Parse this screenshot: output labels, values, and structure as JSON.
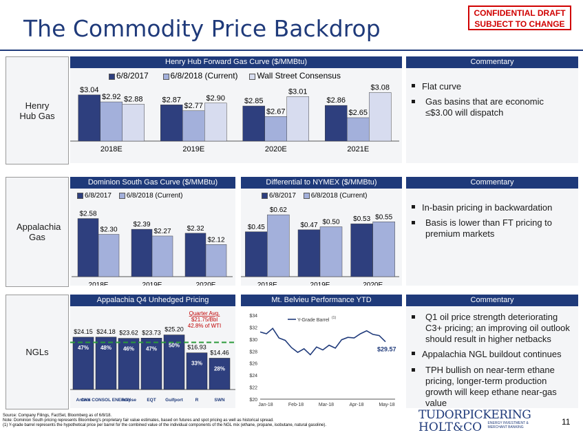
{
  "title": "The Commodity Price Backdrop",
  "confidential": {
    "line1": "CONFIDENTIAL DRAFT",
    "line2": "SUBJECT TO CHANGE"
  },
  "colors": {
    "dark": "#2e3f7e",
    "mid": "#a3b0db",
    "light": "#d7dcef",
    "header": "#1f3a7a",
    "red": "#c00000",
    "green": "#2a9a3a"
  },
  "rows": {
    "henry": "Henry Hub Gas",
    "appalachia": "Appalachia Gas",
    "ngls": "NGLs"
  },
  "henry_chart": {
    "title": "Henry Hub Forward Gas Curve ($/MMBtu)",
    "legend": [
      "6/8/2017",
      "6/8/2018 (Current)",
      "Wall Street Consensus"
    ],
    "chart_data": {
      "type": "bar",
      "categories": [
        "2018E",
        "2019E",
        "2020E",
        "2021E"
      ],
      "series": [
        {
          "name": "6/8/2017",
          "values": [
            3.04,
            2.87,
            2.85,
            2.86
          ],
          "labels": [
            "$3.04",
            "$2.87",
            "$2.85",
            "$2.86"
          ]
        },
        {
          "name": "6/8/2018 (Current)",
          "values": [
            2.92,
            2.77,
            2.67,
            2.65
          ],
          "labels": [
            "$2.92",
            "$2.77",
            "$2.67",
            "$2.65"
          ]
        },
        {
          "name": "Wall Street Consensus",
          "values": [
            2.88,
            2.9,
            3.01,
            3.08
          ],
          "labels": [
            "$2.88",
            "$2.90",
            "$3.01",
            "$3.08"
          ]
        }
      ]
    }
  },
  "dominion_chart": {
    "title": "Dominion South Gas Curve ($/MMBtu)",
    "legend": [
      "6/8/2017",
      "6/8/2018 (Current)"
    ],
    "chart_data": {
      "type": "bar",
      "categories": [
        "2018E",
        "2019E",
        "2020E"
      ],
      "series": [
        {
          "name": "6/8/2017",
          "values": [
            2.58,
            2.39,
            2.32
          ],
          "labels": [
            "$2.58",
            "$2.39",
            "$2.32"
          ]
        },
        {
          "name": "6/8/2018 (Current)",
          "values": [
            2.3,
            2.27,
            2.12
          ],
          "labels": [
            "$2.30",
            "$2.27",
            "$2.12"
          ]
        }
      ]
    }
  },
  "diff_chart": {
    "title": "Differential to NYMEX ($/MMBtu)",
    "legend": [
      "6/8/2017",
      "6/8/2018 (Current)"
    ],
    "chart_data": {
      "type": "bar",
      "categories": [
        "2018E",
        "2019E",
        "2020E"
      ],
      "series": [
        {
          "name": "6/8/2017",
          "values": [
            0.45,
            0.47,
            0.53
          ],
          "labels": [
            "$0.45",
            "$0.47",
            "$0.53"
          ]
        },
        {
          "name": "6/8/2018 (Current)",
          "values": [
            0.62,
            0.5,
            0.55
          ],
          "labels": [
            "$0.62",
            "$0.50",
            "$0.55"
          ]
        }
      ]
    }
  },
  "unhedged_chart": {
    "title": "Appalachia Q4 Unhedged Pricing",
    "annotation": {
      "l1": "Quarter Avg.",
      "l2": "$21.75/Bbl",
      "l3": "42.8% of WTI"
    },
    "chart_data": {
      "type": "bar",
      "avg": 21.75,
      "values": [
        24.15,
        24.18,
        23.62,
        23.73,
        25.2,
        16.93,
        14.46
      ],
      "labels": [
        "$24.15",
        "$24.18",
        "$23.62",
        "$23.73",
        "$25.20",
        "$16.93",
        "$14.46"
      ],
      "pcts": [
        "47%",
        "48%",
        "46%",
        "47%",
        "50%",
        "33%",
        "28%"
      ]
    },
    "logos": [
      "Antero",
      "CNX CONSOL ENERGY",
      "eclipse",
      "EQT",
      "Gulfport",
      "R",
      "SWN"
    ]
  },
  "belvieu_chart": {
    "title": "Mt. Belvieu Performance YTD",
    "legend": "Y-Grade Barrel",
    "legend_sup": "(1)",
    "end_label": "$29.57",
    "chart_data": {
      "type": "line",
      "ylim": [
        20,
        34
      ],
      "yticks": [
        "$34",
        "$32",
        "$30",
        "$28",
        "$26",
        "$24",
        "$22",
        "$20"
      ],
      "xticks": [
        "Jan-18",
        "Feb-18",
        "Mar-18",
        "Apr-18",
        "May-18"
      ],
      "x": [
        0,
        0.05,
        0.1,
        0.15,
        0.2,
        0.25,
        0.3,
        0.35,
        0.4,
        0.45,
        0.5,
        0.55,
        0.6,
        0.65,
        0.7,
        0.75,
        0.8,
        0.85,
        0.9,
        0.95,
        1.0
      ],
      "y": [
        31.2,
        30.9,
        31.8,
        30.2,
        29.8,
        28.6,
        27.8,
        28.4,
        27.4,
        28.7,
        28.2,
        29.0,
        28.5,
        29.9,
        30.3,
        30.2,
        30.9,
        31.4,
        30.8,
        30.6,
        29.57
      ]
    }
  },
  "commentary": {
    "header": "Commentary",
    "henry": [
      "Flat curve",
      "Gas basins that are economic ≤$3.00 will dispatch"
    ],
    "appalachia": [
      "In-basin pricing in backwardation",
      "Basis is lower than FT pricing to premium markets"
    ],
    "ngls": [
      "Q1 oil price strength deteriorating C3+ pricing; an improving oil outlook should result in higher netbacks",
      "Appalachia NGL buildout continues",
      "TPH bullish on near-term ethane pricing, longer-term production growth will keep ethane near-gas value"
    ]
  },
  "footer": {
    "source": "Source: Company Filings, FactSet, Bloomberg as of 6/8/18.",
    "note": "Note: Dominion South pricing represents Bloomberg's proprietary fair value estimates, based on futures and spot pricing as well as historical spread.",
    "fn": "(1)      Y-grade barrel represents the hypothetical price per barrel for the combined value of the individual components of the NGL mix (ethane, propane, isobutane, natural gasoline).",
    "brand1": "TUDORPICKERING",
    "brand2": "HOLT&CO",
    "brand_sub1": "ENERGY INVESTMENT &",
    "brand_sub2": "MERCHANT BANKING",
    "page": "11"
  }
}
